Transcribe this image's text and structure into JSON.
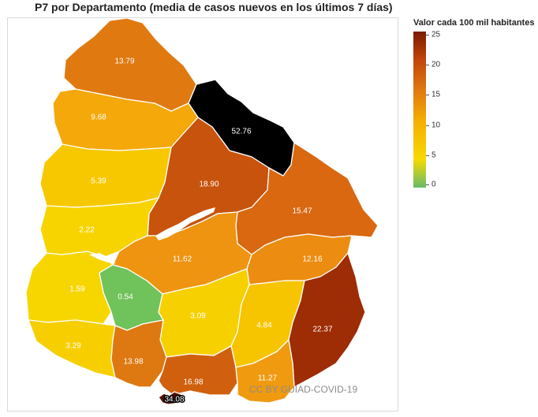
{
  "title": "P7 por Departamento (media de casos nuevos en los últimos 7 días)",
  "legend": {
    "title": "Valor cada 100 mil habitantes",
    "ticks": [
      "25",
      "20",
      "15",
      "10",
      "5",
      "0"
    ],
    "range": [
      0,
      25
    ],
    "colors": [
      "#66bb6a",
      "#f7d900",
      "#f5b000",
      "#e07a10",
      "#c2440a",
      "#7a1a00"
    ]
  },
  "credit": "CC BY GUIAD-COVID-19",
  "departments": [
    {
      "value": "13.79",
      "color": "#e07a10"
    },
    {
      "value": "52.76",
      "color": "#000000"
    },
    {
      "value": "9.68",
      "color": "#f5a80a"
    },
    {
      "value": "5.39",
      "color": "#f7c800"
    },
    {
      "value": "18.90",
      "color": "#c8530c"
    },
    {
      "value": "15.47",
      "color": "#d96810"
    },
    {
      "value": "2.22",
      "color": "#f7d400"
    },
    {
      "value": "11.62",
      "color": "#ee9410"
    },
    {
      "value": "12.16",
      "color": "#ec8c10"
    },
    {
      "value": "1.59",
      "color": "#f7d600"
    },
    {
      "value": "0.54",
      "color": "#70c25a"
    },
    {
      "value": "3.09",
      "color": "#f7d000"
    },
    {
      "value": "4.84",
      "color": "#f7c400"
    },
    {
      "value": "22.37",
      "color": "#9e2c04"
    },
    {
      "value": "3.29",
      "color": "#f7cf00"
    },
    {
      "value": "13.98",
      "color": "#de7810"
    },
    {
      "value": "16.98",
      "color": "#d0600e"
    },
    {
      "value": "11.27",
      "color": "#f09a10"
    },
    {
      "value": "34.08",
      "color": "#5a0e02"
    }
  ]
}
